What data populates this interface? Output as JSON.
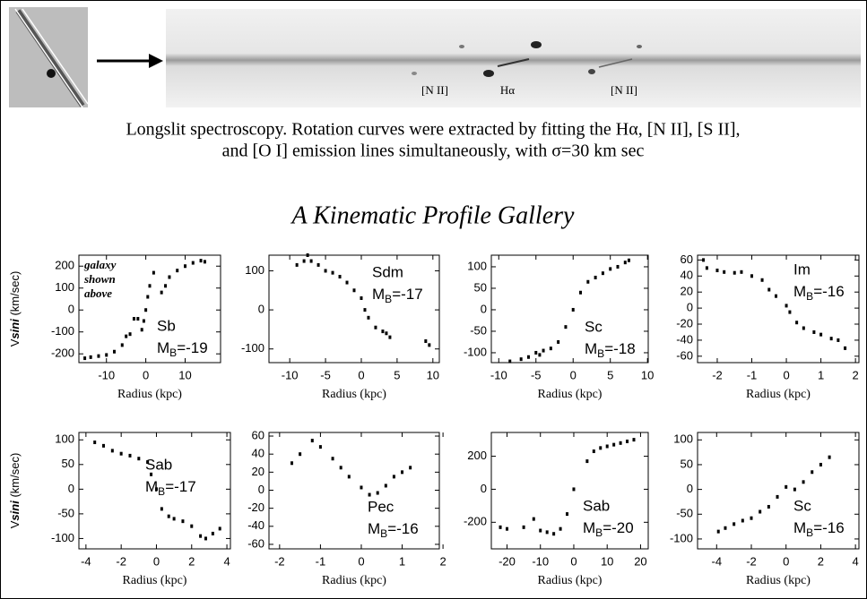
{
  "spectrum_labels": [
    "[N II]",
    "Hα",
    "[N II]"
  ],
  "caption": [
    "Longslit spectroscopy.  Rotation curves were extracted by fitting the Hα,  [N II],  [S II],",
    "and [O I] emission lines simultaneously, with σ=30 km sec"
  ],
  "gallery_title": "A Kinematic Profile Gallery",
  "ylabel_parts": [
    "V",
    "sin",
    "i",
    " (km/sec)"
  ],
  "chart_data": [
    {
      "type": "scatter",
      "xlabel": "Radius (kpc)",
      "morph": "Sb",
      "mag_symbol": "M",
      "mag_subscript": "B",
      "mag_value": "=-19",
      "note": [
        "galaxy",
        "shown",
        "above"
      ],
      "color": "#000000",
      "x": [
        -15.5,
        -14,
        -12,
        -10,
        -8,
        -6,
        -5,
        -4,
        -3,
        -2,
        -1,
        -0.5,
        0,
        0.5,
        1,
        2,
        4,
        5,
        6,
        8,
        10,
        12,
        14,
        15
      ],
      "values": [
        -220,
        -215,
        -210,
        -205,
        -190,
        -160,
        -120,
        -110,
        -40,
        -40,
        -90,
        -50,
        0,
        60,
        110,
        170,
        80,
        110,
        150,
        180,
        200,
        215,
        225,
        220
      ],
      "xlim": [
        -17,
        19
      ],
      "ylim": [
        -240,
        250
      ],
      "xticks": [
        -10,
        0,
        10
      ],
      "yticks": [
        -200,
        -100,
        0,
        100,
        200
      ]
    },
    {
      "type": "scatter",
      "xlabel": "Radius (kpc)",
      "morph": "Sdm",
      "mag_symbol": "M",
      "mag_subscript": "B",
      "mag_value": "=-17",
      "color": "#000000",
      "x": [
        -9,
        -8,
        -7.5,
        -7,
        -6,
        -5,
        -4,
        -3,
        -2,
        -1,
        0,
        0.5,
        1,
        2,
        3,
        3.5,
        4,
        9,
        9.5
      ],
      "values": [
        115,
        125,
        140,
        125,
        115,
        100,
        95,
        85,
        70,
        50,
        30,
        0,
        -20,
        -45,
        -55,
        -60,
        -70,
        -80,
        -90
      ],
      "xlim": [
        -12.9,
        10.9
      ],
      "ylim": [
        -135,
        140
      ],
      "xticks": [
        -10,
        -5,
        0,
        5,
        10
      ],
      "yticks": [
        -100,
        0,
        100
      ]
    },
    {
      "type": "scatter",
      "xlabel": "Radius (kpc)",
      "morph": "Sc",
      "mag_symbol": "M",
      "mag_subscript": "B",
      "mag_value": "=-18",
      "color": "#000000",
      "x": [
        -8.5,
        -7,
        -6,
        -5,
        -4.5,
        -4,
        -3,
        -2,
        -1,
        0,
        1,
        2,
        3,
        4,
        5,
        6,
        7,
        7.5
      ],
      "values": [
        -120,
        -115,
        -110,
        -100,
        -105,
        -95,
        -90,
        -75,
        -40,
        0,
        40,
        65,
        75,
        85,
        95,
        100,
        110,
        115
      ],
      "xlim": [
        -11,
        10.1
      ],
      "ylim": [
        -123,
        127
      ],
      "xticks": [
        -10,
        -5,
        0,
        5,
        10
      ],
      "yticks": [
        -100,
        -50,
        0,
        50,
        100
      ]
    },
    {
      "type": "scatter",
      "xlabel": "Radius (kpc)",
      "morph": "Im",
      "mag_symbol": "M",
      "mag_subscript": "B",
      "mag_value": "=-16",
      "color": "#000000",
      "x": [
        -2.4,
        -2.3,
        -2,
        -1.8,
        -1.5,
        -1.3,
        -1,
        -0.7,
        -0.5,
        -0.3,
        0,
        0.1,
        0.3,
        0.5,
        0.8,
        1,
        1.3,
        1.5,
        1.7
      ],
      "values": [
        60,
        50,
        47,
        45,
        44,
        45,
        40,
        35,
        23,
        15,
        3,
        -5,
        -18,
        -25,
        -30,
        -33,
        -38,
        -40,
        -50
      ],
      "xlim": [
        -2.57,
        2.1
      ],
      "ylim": [
        -68,
        66
      ],
      "xticks": [
        -2,
        -1,
        0,
        1,
        2
      ],
      "yticks": [
        -60,
        -40,
        -20,
        0,
        20,
        40,
        60
      ]
    },
    {
      "type": "scatter",
      "xlabel": "Radius (kpc)",
      "morph": "Sab",
      "mag_symbol": "M",
      "mag_subscript": "B",
      "mag_value": "=-17",
      "color": "#000000",
      "x": [
        -3.5,
        -3,
        -2.5,
        -2,
        -1.5,
        -1,
        -0.5,
        -0.3,
        0,
        0.3,
        0.7,
        1,
        1.5,
        2,
        2.5,
        2.8,
        3.2,
        3.6
      ],
      "values": [
        95,
        88,
        78,
        72,
        68,
        62,
        55,
        30,
        0,
        -40,
        -55,
        -60,
        -65,
        -75,
        -95,
        -100,
        -90,
        -80
      ],
      "xlim": [
        -4.4,
        4.2
      ],
      "ylim": [
        -121,
        115
      ],
      "xticks": [
        -4,
        -2,
        0,
        2,
        4
      ],
      "yticks": [
        -100,
        -50,
        0,
        50,
        100
      ]
    },
    {
      "type": "scatter",
      "xlabel": "Radius (kpc)",
      "morph": "Pec",
      "mag_symbol": "M",
      "mag_subscript": "B",
      "mag_value": "=-16",
      "color": "#000000",
      "x": [
        -1.7,
        -1.5,
        -1.2,
        -1,
        -0.7,
        -0.5,
        -0.3,
        0,
        0.2,
        0.4,
        0.6,
        0.8,
        1,
        1.2
      ],
      "values": [
        30,
        40,
        55,
        48,
        35,
        25,
        15,
        3,
        -5,
        -3,
        5,
        15,
        20,
        25
      ],
      "xlim": [
        -2.26,
        1.91
      ],
      "ylim": [
        -65,
        64
      ],
      "xticks": [
        -2,
        -1,
        0,
        1,
        2
      ],
      "yticks": [
        -60,
        -40,
        -20,
        0,
        20,
        40,
        60
      ]
    },
    {
      "type": "scatter",
      "xlabel": "Radius (kpc)",
      "morph": "Sab",
      "mag_symbol": "M",
      "mag_subscript": "B",
      "mag_value": "=-20",
      "color": "#000000",
      "x": [
        -22,
        -20,
        -15,
        -12,
        -10,
        -8,
        -6,
        -4,
        -2,
        0,
        4,
        6,
        8,
        10,
        12,
        14,
        16,
        18
      ],
      "values": [
        -230,
        -240,
        -230,
        -180,
        -250,
        -260,
        -270,
        -240,
        -150,
        0,
        170,
        230,
        250,
        260,
        270,
        280,
        290,
        300
      ],
      "xlim": [
        -24.7,
        22.3
      ],
      "ylim": [
        -361,
        344
      ],
      "xticks": [
        -20,
        -10,
        0,
        10,
        20
      ],
      "yticks": [
        -200,
        0,
        200
      ]
    },
    {
      "type": "scatter",
      "xlabel": "Radius (kpc)",
      "morph": "Sc",
      "mag_symbol": "M",
      "mag_subscript": "B",
      "mag_value": "=-16",
      "color": "#000000",
      "x": [
        -3.9,
        -3.5,
        -3,
        -2.5,
        -2,
        -1.5,
        -1,
        -0.5,
        0,
        0.5,
        1,
        1.5,
        2,
        2.5
      ],
      "values": [
        -85,
        -78,
        -70,
        -63,
        -58,
        -45,
        -35,
        -15,
        5,
        0,
        15,
        35,
        50,
        65
      ],
      "xlim": [
        -5.1,
        4.2
      ],
      "ylim": [
        -120,
        115
      ],
      "xticks": [
        -4,
        -2,
        0,
        2,
        4
      ],
      "yticks": [
        -100,
        -50,
        0,
        50,
        100
      ]
    }
  ]
}
